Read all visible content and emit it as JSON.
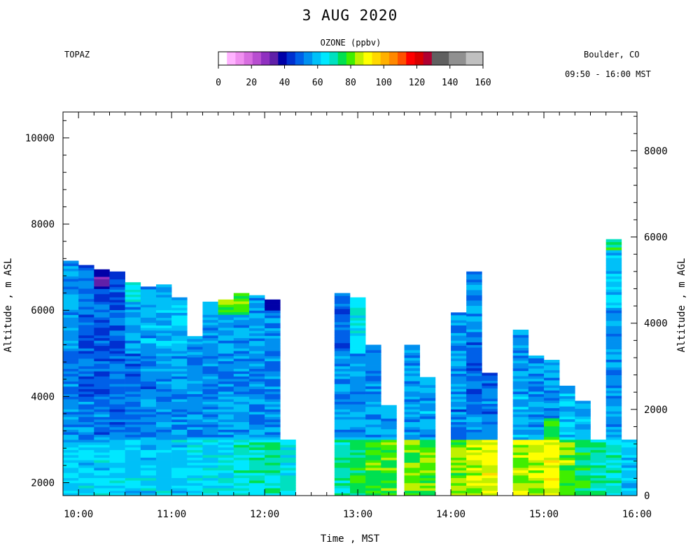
{
  "title": "3 AUG 2020",
  "station": "TOPAZ",
  "location": "Boulder, CO",
  "time_range": "09:50 - 16:00 MST",
  "colorbar": {
    "label": "OZONE (ppbv)",
    "ticks": [
      "0",
      "20",
      "40",
      "60",
      "80",
      "100",
      "120",
      "140",
      "160"
    ],
    "colors": [
      "#ffffff",
      "#ffb3ff",
      "#f090f0",
      "#d86ee0",
      "#b84ed0",
      "#9030c0",
      "#6020a8",
      "#0000a8",
      "#0030d0",
      "#0060e8",
      "#0090f0",
      "#00c0f8",
      "#00e8ff",
      "#00e0c0",
      "#00e050",
      "#40ee00",
      "#c0f000",
      "#ffff00",
      "#ffd800",
      "#ffb000",
      "#ff8800",
      "#ff5000",
      "#ff0000",
      "#d80000",
      "#b00030",
      "#606060",
      "#606060",
      "#909090",
      "#909090",
      "#c0c0c0",
      "#c0c0c0"
    ]
  },
  "chart_data": {
    "type": "heatmap",
    "title": "3 AUG 2020",
    "variable": "OZONE (ppbv)",
    "xlabel": "Time , MST",
    "ylabel_left": "Altitude , m ASL",
    "ylabel_right": "Altitude , m AGL",
    "x_range": [
      "09:50",
      "16:00"
    ],
    "x_ticks": [
      "10:00",
      "11:00",
      "12:00",
      "13:00",
      "14:00",
      "15:00",
      "16:00"
    ],
    "y_left_range": [
      1700,
      10600
    ],
    "y_left_ticks": [
      2000,
      4000,
      6000,
      8000,
      10000
    ],
    "y_right_ticks": [
      0,
      2000,
      4000,
      6000,
      8000
    ],
    "surface_altitude_m_asl": 1700,
    "color_scale_ppbv": [
      0,
      160
    ],
    "profiles": [
      {
        "time": "09:55",
        "top_m_asl": 7150,
        "layers": [
          {
            "from": 1700,
            "to": 3000,
            "ozone": 62
          },
          {
            "from": 3000,
            "to": 4000,
            "ozone": 55
          },
          {
            "from": 4000,
            "to": 5000,
            "ozone": 52
          },
          {
            "from": 5000,
            "to": 7150,
            "ozone": 55
          }
        ]
      },
      {
        "time": "10:05",
        "top_m_asl": 7050,
        "layers": [
          {
            "from": 1700,
            "to": 3000,
            "ozone": 62
          },
          {
            "from": 3000,
            "to": 4000,
            "ozone": 54
          },
          {
            "from": 4000,
            "to": 5000,
            "ozone": 50
          },
          {
            "from": 5000,
            "to": 7050,
            "ozone": 50
          }
        ]
      },
      {
        "time": "10:15",
        "top_m_asl": 6950,
        "layers": [
          {
            "from": 1700,
            "to": 3000,
            "ozone": 62
          },
          {
            "from": 3000,
            "to": 4000,
            "ozone": 52
          },
          {
            "from": 4000,
            "to": 5000,
            "ozone": 50
          },
          {
            "from": 5000,
            "to": 6500,
            "ozone": 48
          },
          {
            "from": 6500,
            "to": 6950,
            "ozone": 35
          }
        ]
      },
      {
        "time": "10:25",
        "top_m_asl": 6900,
        "layers": [
          {
            "from": 1700,
            "to": 3000,
            "ozone": 62
          },
          {
            "from": 3000,
            "to": 4000,
            "ozone": 50
          },
          {
            "from": 4000,
            "to": 5000,
            "ozone": 52
          },
          {
            "from": 5000,
            "to": 6900,
            "ozone": 48
          }
        ]
      },
      {
        "time": "10:35",
        "top_m_asl": 6650,
        "layers": [
          {
            "from": 1700,
            "to": 3000,
            "ozone": 62
          },
          {
            "from": 3000,
            "to": 4000,
            "ozone": 52
          },
          {
            "from": 4000,
            "to": 5000,
            "ozone": 52
          },
          {
            "from": 5000,
            "to": 6200,
            "ozone": 55
          },
          {
            "from": 6200,
            "to": 6650,
            "ozone": 68
          }
        ]
      },
      {
        "time": "10:45",
        "top_m_asl": 6550,
        "layers": [
          {
            "from": 1700,
            "to": 3000,
            "ozone": 62
          },
          {
            "from": 3000,
            "to": 4000,
            "ozone": 55
          },
          {
            "from": 4000,
            "to": 5000,
            "ozone": 52
          },
          {
            "from": 5000,
            "to": 6550,
            "ozone": 57
          }
        ]
      },
      {
        "time": "10:55",
        "top_m_asl": 6600,
        "layers": [
          {
            "from": 1700,
            "to": 3000,
            "ozone": 62
          },
          {
            "from": 3000,
            "to": 4000,
            "ozone": 55
          },
          {
            "from": 4000,
            "to": 5000,
            "ozone": 53
          },
          {
            "from": 5000,
            "to": 6600,
            "ozone": 58
          }
        ]
      },
      {
        "time": "11:05",
        "top_m_asl": 6300,
        "layers": [
          {
            "from": 1700,
            "to": 3000,
            "ozone": 62
          },
          {
            "from": 3000,
            "to": 4000,
            "ozone": 55
          },
          {
            "from": 4000,
            "to": 5000,
            "ozone": 55
          },
          {
            "from": 5000,
            "to": 6300,
            "ozone": 60
          }
        ]
      },
      {
        "time": "11:15",
        "top_m_asl": 5400,
        "layers": [
          {
            "from": 1700,
            "to": 3000,
            "ozone": 63
          },
          {
            "from": 3000,
            "to": 4000,
            "ozone": 55
          },
          {
            "from": 4000,
            "to": 5400,
            "ozone": 55
          }
        ]
      },
      {
        "time": "11:25",
        "top_m_asl": 6200,
        "layers": [
          {
            "from": 1700,
            "to": 3000,
            "ozone": 63
          },
          {
            "from": 3000,
            "to": 4000,
            "ozone": 55
          },
          {
            "from": 4000,
            "to": 5000,
            "ozone": 52
          },
          {
            "from": 5000,
            "to": 6200,
            "ozone": 55
          }
        ]
      },
      {
        "time": "11:35",
        "top_m_asl": 6250,
        "layers": [
          {
            "from": 1700,
            "to": 3000,
            "ozone": 66
          },
          {
            "from": 3000,
            "to": 4000,
            "ozone": 56
          },
          {
            "from": 4000,
            "to": 5000,
            "ozone": 53
          },
          {
            "from": 5000,
            "to": 5900,
            "ozone": 56
          },
          {
            "from": 5900,
            "to": 6250,
            "ozone": 80
          }
        ]
      },
      {
        "time": "11:45",
        "top_m_asl": 6400,
        "layers": [
          {
            "from": 1700,
            "to": 3000,
            "ozone": 68
          },
          {
            "from": 3000,
            "to": 4000,
            "ozone": 56
          },
          {
            "from": 4000,
            "to": 5000,
            "ozone": 53
          },
          {
            "from": 5000,
            "to": 5900,
            "ozone": 56
          },
          {
            "from": 5900,
            "to": 6400,
            "ozone": 82
          }
        ]
      },
      {
        "time": "11:55",
        "top_m_asl": 6350,
        "layers": [
          {
            "from": 1700,
            "to": 3000,
            "ozone": 68
          },
          {
            "from": 3000,
            "to": 4000,
            "ozone": 55
          },
          {
            "from": 4000,
            "to": 5000,
            "ozone": 53
          },
          {
            "from": 5000,
            "to": 6350,
            "ozone": 55
          }
        ]
      },
      {
        "time": "12:05",
        "top_m_asl": 6250,
        "layers": [
          {
            "from": 1700,
            "to": 3000,
            "ozone": 70
          },
          {
            "from": 3000,
            "to": 4000,
            "ozone": 55
          },
          {
            "from": 4000,
            "to": 5000,
            "ozone": 53
          },
          {
            "from": 5000,
            "to": 6000,
            "ozone": 55
          },
          {
            "from": 6000,
            "to": 6250,
            "ozone": 42
          }
        ]
      },
      {
        "time": "12:15",
        "top_m_asl": 3000,
        "layers": [
          {
            "from": 1700,
            "to": 3000,
            "ozone": 66
          }
        ]
      },
      {
        "time": "12:50",
        "top_m_asl": 6400,
        "layers": [
          {
            "from": 1700,
            "to": 3000,
            "ozone": 72
          },
          {
            "from": 3000,
            "to": 4000,
            "ozone": 56
          },
          {
            "from": 4000,
            "to": 5000,
            "ozone": 55
          },
          {
            "from": 5000,
            "to": 6400,
            "ozone": 50
          }
        ]
      },
      {
        "time": "13:00",
        "top_m_asl": 6300,
        "layers": [
          {
            "from": 1700,
            "to": 3000,
            "ozone": 75
          },
          {
            "from": 3000,
            "to": 4000,
            "ozone": 56
          },
          {
            "from": 4000,
            "to": 5000,
            "ozone": 55
          },
          {
            "from": 5000,
            "to": 6300,
            "ozone": 65
          }
        ]
      },
      {
        "time": "13:10",
        "top_m_asl": 5200,
        "layers": [
          {
            "from": 1700,
            "to": 3000,
            "ozone": 78
          },
          {
            "from": 3000,
            "to": 4000,
            "ozone": 56
          },
          {
            "from": 4000,
            "to": 5200,
            "ozone": 55
          }
        ]
      },
      {
        "time": "13:20",
        "top_m_asl": 3800,
        "layers": [
          {
            "from": 1700,
            "to": 3000,
            "ozone": 78
          },
          {
            "from": 3000,
            "to": 3800,
            "ozone": 56
          }
        ]
      },
      {
        "time": "13:35",
        "top_m_asl": 5200,
        "layers": [
          {
            "from": 1700,
            "to": 3000,
            "ozone": 80
          },
          {
            "from": 3000,
            "to": 4000,
            "ozone": 56
          },
          {
            "from": 4000,
            "to": 5200,
            "ozone": 56
          }
        ]
      },
      {
        "time": "13:45",
        "top_m_asl": 4450,
        "layers": [
          {
            "from": 1700,
            "to": 3000,
            "ozone": 80
          },
          {
            "from": 3000,
            "to": 4450,
            "ozone": 56
          }
        ]
      },
      {
        "time": "14:05",
        "top_m_asl": 5950,
        "layers": [
          {
            "from": 1700,
            "to": 3000,
            "ozone": 82
          },
          {
            "from": 3000,
            "to": 4000,
            "ozone": 52
          },
          {
            "from": 4000,
            "to": 5950,
            "ozone": 55
          }
        ]
      },
      {
        "time": "14:15",
        "top_m_asl": 6900,
        "layers": [
          {
            "from": 1700,
            "to": 3000,
            "ozone": 86
          },
          {
            "from": 3000,
            "to": 4000,
            "ozone": 52
          },
          {
            "from": 4000,
            "to": 5500,
            "ozone": 50
          },
          {
            "from": 5500,
            "to": 6900,
            "ozone": 56
          }
        ]
      },
      {
        "time": "14:25",
        "top_m_asl": 4550,
        "layers": [
          {
            "from": 1700,
            "to": 3000,
            "ozone": 88
          },
          {
            "from": 3000,
            "to": 4550,
            "ozone": 52
          }
        ]
      },
      {
        "time": "14:45",
        "top_m_asl": 5550,
        "layers": [
          {
            "from": 1700,
            "to": 3000,
            "ozone": 86
          },
          {
            "from": 3000,
            "to": 4000,
            "ozone": 58
          },
          {
            "from": 4000,
            "to": 5550,
            "ozone": 56
          }
        ]
      },
      {
        "time": "14:55",
        "top_m_asl": 4950,
        "layers": [
          {
            "from": 1700,
            "to": 3000,
            "ozone": 86
          },
          {
            "from": 3000,
            "to": 4000,
            "ozone": 56
          },
          {
            "from": 4000,
            "to": 4950,
            "ozone": 54
          }
        ]
      },
      {
        "time": "15:05",
        "top_m_asl": 4850,
        "layers": [
          {
            "from": 1700,
            "to": 3000,
            "ozone": 88
          },
          {
            "from": 3000,
            "to": 3500,
            "ozone": 76
          },
          {
            "from": 3500,
            "to": 4850,
            "ozone": 55
          }
        ]
      },
      {
        "time": "15:15",
        "top_m_asl": 4250,
        "layers": [
          {
            "from": 1700,
            "to": 3000,
            "ozone": 82
          },
          {
            "from": 3000,
            "to": 4250,
            "ozone": 60
          }
        ]
      },
      {
        "time": "15:25",
        "top_m_asl": 3900,
        "layers": [
          {
            "from": 1700,
            "to": 3000,
            "ozone": 74
          },
          {
            "from": 3000,
            "to": 3900,
            "ozone": 58
          }
        ]
      },
      {
        "time": "15:35",
        "top_m_asl": 3000,
        "layers": [
          {
            "from": 1700,
            "to": 3000,
            "ozone": 70
          }
        ]
      },
      {
        "time": "15:45",
        "top_m_asl": 7650,
        "layers": [
          {
            "from": 1700,
            "to": 3000,
            "ozone": 68
          },
          {
            "from": 3000,
            "to": 6000,
            "ozone": 55
          },
          {
            "from": 6000,
            "to": 7400,
            "ozone": 60
          },
          {
            "from": 7400,
            "to": 7650,
            "ozone": 75
          }
        ]
      },
      {
        "time": "15:55",
        "top_m_asl": 3000,
        "layers": [
          {
            "from": 1700,
            "to": 3000,
            "ozone": 60
          }
        ]
      }
    ]
  }
}
